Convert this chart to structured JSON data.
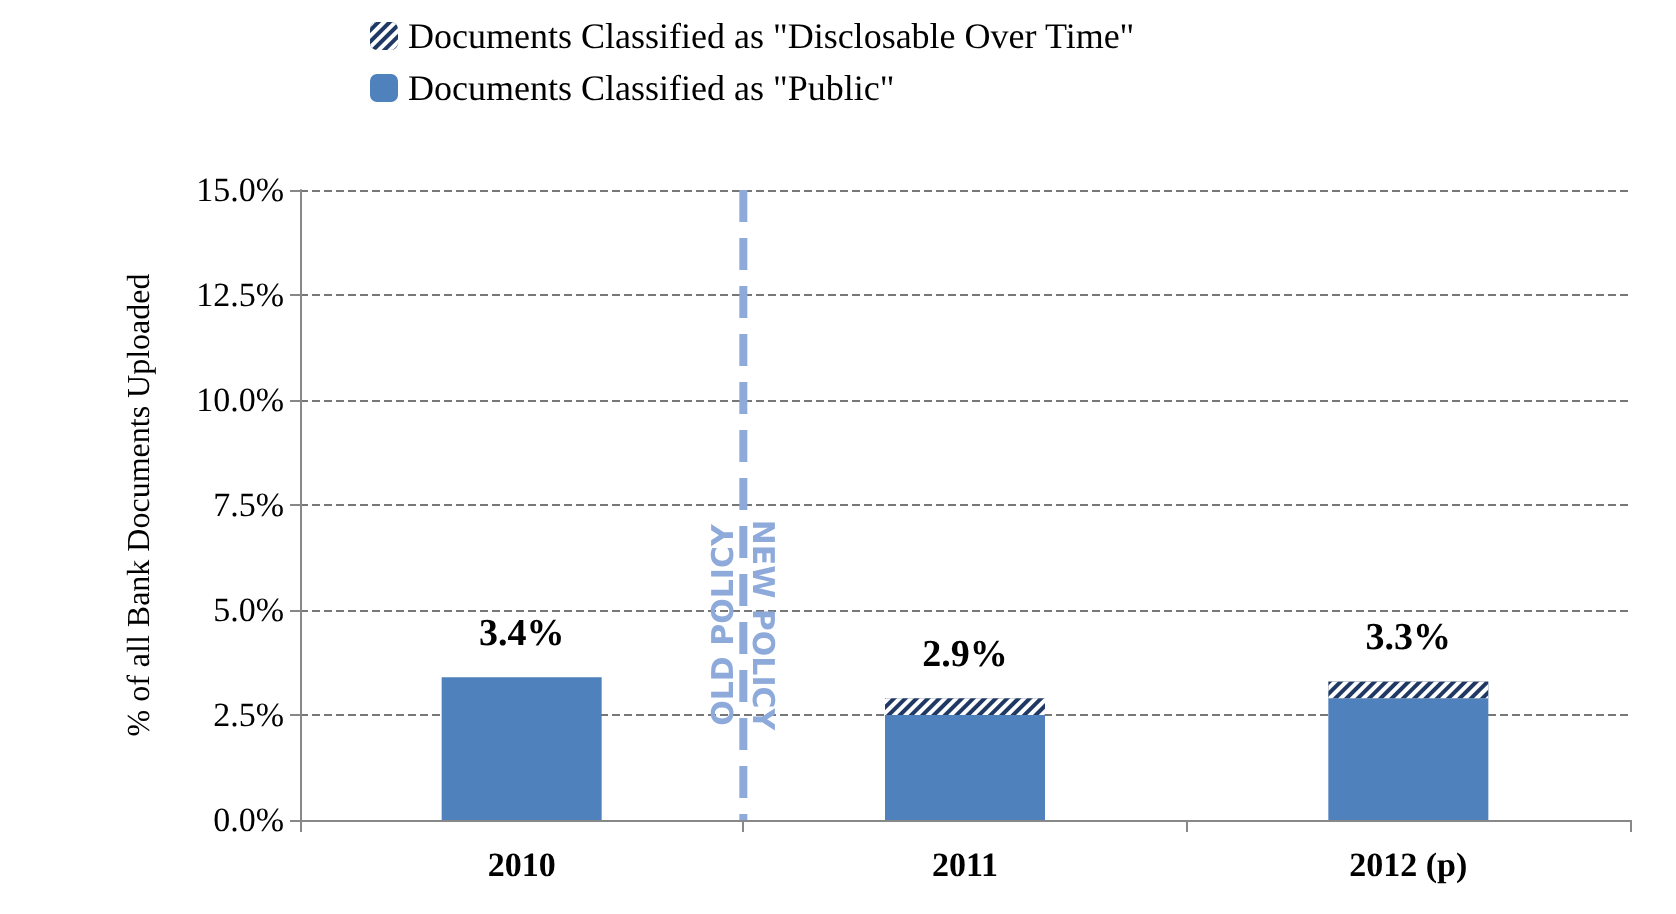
{
  "chart_data": {
    "type": "bar",
    "stacked": true,
    "ylabel": "% of all Bank Documents Uploaded",
    "categories": [
      "2010",
      "2011",
      "2012 (p)"
    ],
    "series": [
      {
        "name": "Documents Classified as \"Public\"",
        "color": "#4f81bd",
        "values": [
          3.4,
          2.5,
          2.9
        ]
      },
      {
        "name": "Documents Classified as \"Disclosable Over Time\"",
        "color": "#1f3864",
        "values": [
          null,
          0.4,
          0.4
        ]
      }
    ],
    "totals": [
      "3.4%",
      "2.9%",
      "3.3%"
    ],
    "ylim": [
      0,
      15
    ],
    "yticks": [
      {
        "value": 0,
        "label": "0.0%"
      },
      {
        "value": 2.5,
        "label": "2.5%"
      },
      {
        "value": 5,
        "label": "5.0%"
      },
      {
        "value": 7.5,
        "label": "7.5%"
      },
      {
        "value": 10,
        "label": "10.0%"
      },
      {
        "value": 12.5,
        "label": "12.5%"
      },
      {
        "value": 15,
        "label": "15.0%"
      }
    ],
    "grid": "y",
    "legend": "top",
    "annotations": [
      "OLD POLICY",
      "NEW POLICY"
    ]
  }
}
